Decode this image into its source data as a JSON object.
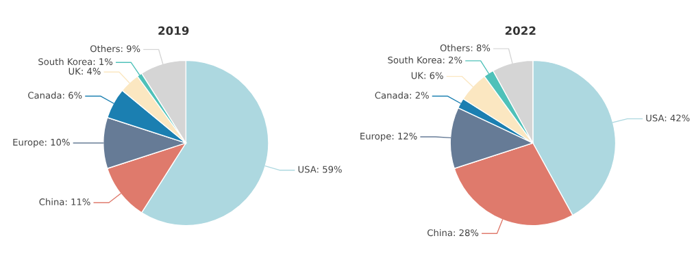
{
  "chart_data": [
    {
      "type": "pie",
      "title": "2019",
      "categories": [
        "USA",
        "China",
        "Europe",
        "Canada",
        "UK",
        "South Korea",
        "Others"
      ],
      "values": [
        59,
        11,
        10,
        6,
        4,
        1,
        9
      ],
      "value_labels": [
        "59%",
        "11%",
        "10%",
        "6%",
        "4%",
        "1%",
        "9%"
      ],
      "colors": [
        "#add8e0",
        "#df7a6c",
        "#667b96",
        "#1b7fb1",
        "#fbe7c1",
        "#4fc1b9",
        "#d5d5d5"
      ]
    },
    {
      "type": "pie",
      "title": "2022",
      "categories": [
        "USA",
        "China",
        "Europe",
        "Canada",
        "UK",
        "South Korea",
        "Others"
      ],
      "values": [
        42,
        28,
        12,
        2,
        6,
        2,
        8
      ],
      "value_labels": [
        "42%",
        "28%",
        "12%",
        "2%",
        "6%",
        "2%",
        "8%"
      ],
      "colors": [
        "#add8e0",
        "#df7a6c",
        "#667b96",
        "#1b7fb1",
        "#fbe7c1",
        "#4fc1b9",
        "#d5d5d5"
      ]
    }
  ]
}
